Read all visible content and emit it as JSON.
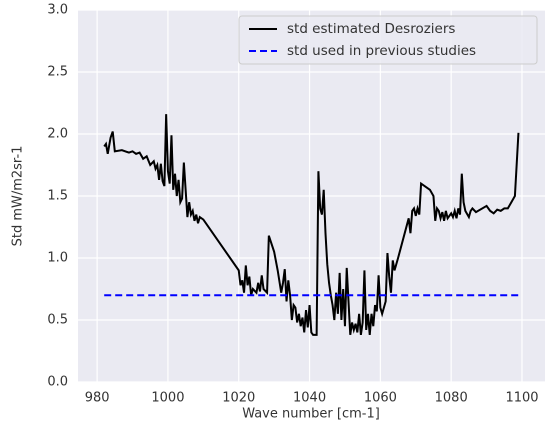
{
  "chart_data": {
    "type": "line",
    "xlabel": "Wave number [cm-1]",
    "ylabel": "Std mW/m2sr-1",
    "xlim": [
      974.6,
      1106.5
    ],
    "ylim": [
      0,
      3.0
    ],
    "xticks": [
      980,
      1000,
      1020,
      1040,
      1060,
      1080,
      1100
    ],
    "yticks": [
      {
        "value": 0,
        "label": "0.0"
      },
      {
        "value": 0.5,
        "label": "0.5"
      },
      {
        "value": 1,
        "label": "1.0"
      },
      {
        "value": 1.5,
        "label": "1.5"
      },
      {
        "value": 2,
        "label": "2.0"
      },
      {
        "value": 2.5,
        "label": "2.5"
      },
      {
        "value": 3,
        "label": "3.0"
      }
    ],
    "grid": true,
    "legend": "upper right",
    "series": [
      {
        "name": "std estimated Desroziers",
        "color": "#000000",
        "dash": "solid",
        "x": [
          982,
          982.5,
          983,
          983.8,
          984.4,
          985,
          987,
          989,
          990,
          991,
          992,
          993,
          994,
          995,
          996,
          996.5,
          997,
          997.5,
          998,
          998.5,
          999,
          999.5,
          1000,
          1000.5,
          1001,
          1001.5,
          1002,
          1002.5,
          1003,
          1003.5,
          1004,
          1004.5,
          1005,
          1005.5,
          1006,
          1006.5,
          1007,
          1007.5,
          1008,
          1008.5,
          1009,
          1010,
          1020,
          1020.5,
          1021,
          1021.5,
          1022,
          1022.5,
          1023,
          1023.5,
          1024,
          1025,
          1025.5,
          1026,
          1026.5,
          1027,
          1028,
          1028.5,
          1030,
          1031,
          1032,
          1032.5,
          1033,
          1033.5,
          1034,
          1034.5,
          1035,
          1035.5,
          1036,
          1036.5,
          1037,
          1037.5,
          1038,
          1038.5,
          1039,
          1039.5,
          1040,
          1040.5,
          1041,
          1042,
          1042.5,
          1043,
          1043.5,
          1044,
          1044.5,
          1045,
          1045.5,
          1046,
          1046.5,
          1047,
          1047.5,
          1048,
          1048.5,
          1049,
          1049.5,
          1050,
          1050.5,
          1051,
          1051.5,
          1052,
          1052.5,
          1053,
          1053.5,
          1054,
          1054.5,
          1055,
          1055.5,
          1056,
          1056.5,
          1057,
          1057.5,
          1058,
          1058.5,
          1059,
          1059.5,
          1060,
          1060.5,
          1061,
          1061.5,
          1062,
          1062.5,
          1063,
          1063.5,
          1064,
          1065,
          1068,
          1068.5,
          1069,
          1069.5,
          1070,
          1070.5,
          1071,
          1071.5,
          1074,
          1075,
          1075.5,
          1076,
          1076.5,
          1077,
          1077.5,
          1078,
          1078.5,
          1079,
          1080,
          1080.5,
          1081,
          1081.5,
          1082,
          1082.5,
          1083,
          1083.5,
          1084,
          1085,
          1085.5,
          1086,
          1087,
          1090,
          1091,
          1092,
          1093,
          1094,
          1095,
          1096,
          1097,
          1098,
          1099
        ],
        "values": [
          1.9,
          1.92,
          1.84,
          1.97,
          2.02,
          1.86,
          1.87,
          1.85,
          1.86,
          1.84,
          1.85,
          1.8,
          1.82,
          1.75,
          1.78,
          1.72,
          1.75,
          1.63,
          1.76,
          1.62,
          1.58,
          2.16,
          1.7,
          1.6,
          1.99,
          1.55,
          1.68,
          1.5,
          1.63,
          1.45,
          1.48,
          1.77,
          1.55,
          1.33,
          1.45,
          1.35,
          1.38,
          1.3,
          1.35,
          1.28,
          1.33,
          1.31,
          0.9,
          0.78,
          0.82,
          0.72,
          0.94,
          0.78,
          0.85,
          0.7,
          0.75,
          0.72,
          0.8,
          0.73,
          0.86,
          0.75,
          0.72,
          1.18,
          1.05,
          0.9,
          0.72,
          0.8,
          0.91,
          0.65,
          0.82,
          0.7,
          0.5,
          0.62,
          0.6,
          0.48,
          0.55,
          0.45,
          0.52,
          0.4,
          0.58,
          0.44,
          0.62,
          0.4,
          0.38,
          0.38,
          1.7,
          1.4,
          1.35,
          1.55,
          1.2,
          0.95,
          0.8,
          0.7,
          0.62,
          0.5,
          0.72,
          0.55,
          0.88,
          0.5,
          0.75,
          0.45,
          0.92,
          0.65,
          0.38,
          0.48,
          0.42,
          0.47,
          0.4,
          0.55,
          0.38,
          0.48,
          0.9,
          0.42,
          0.55,
          0.38,
          0.55,
          0.45,
          0.62,
          0.57,
          0.86,
          0.6,
          0.55,
          0.6,
          0.65,
          1.04,
          0.85,
          0.72,
          0.98,
          0.9,
          1.0,
          1.32,
          1.2,
          1.38,
          1.4,
          1.34,
          1.4,
          1.35,
          1.6,
          1.55,
          1.5,
          1.3,
          1.4,
          1.38,
          1.32,
          1.37,
          1.3,
          1.38,
          1.32,
          1.36,
          1.33,
          1.38,
          1.32,
          1.4,
          1.35,
          1.68,
          1.45,
          1.38,
          1.33,
          1.38,
          1.4,
          1.37,
          1.42,
          1.38,
          1.36,
          1.39,
          1.38,
          1.4,
          1.4,
          1.45,
          1.5,
          2.01
        ]
      },
      {
        "name": "std used in previous studies",
        "color": "#0000ff",
        "dash": "dashed",
        "x": [
          982,
          1099
        ],
        "values": [
          0.7,
          0.7
        ]
      }
    ]
  }
}
